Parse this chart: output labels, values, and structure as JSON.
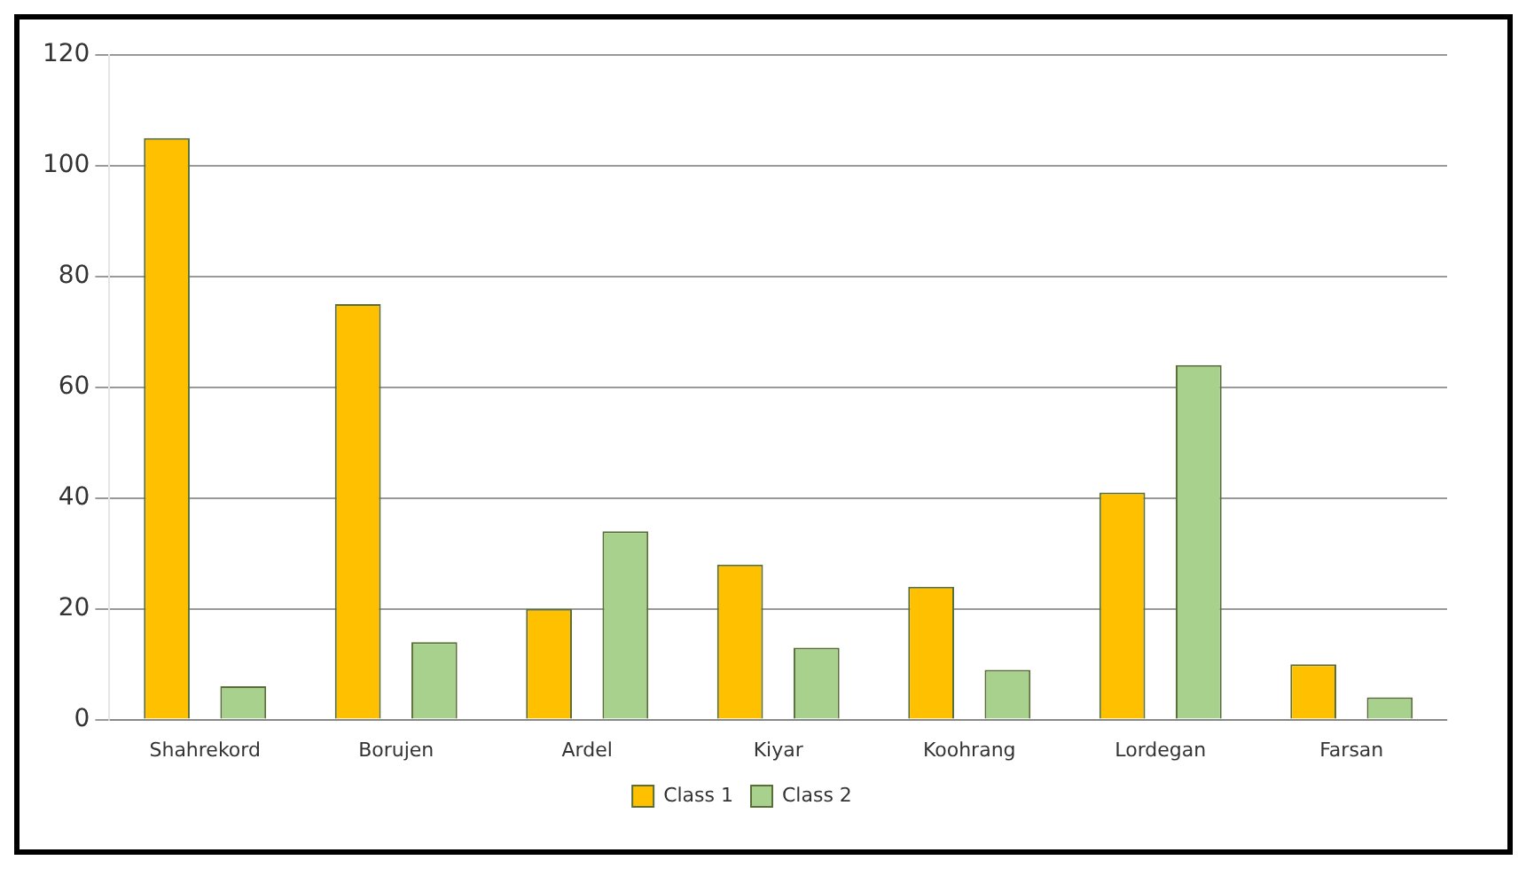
{
  "chart_data": {
    "type": "bar",
    "categories": [
      "Shahrekord",
      "Borujen",
      "Ardel",
      "Kiyar",
      "Koohrang",
      "Lordegan",
      "Farsan"
    ],
    "series": [
      {
        "name": "Class 1",
        "color": "#ffc000",
        "values": [
          105,
          75,
          20,
          28,
          24,
          41,
          10
        ]
      },
      {
        "name": "Class 2",
        "color": "#a9d18e",
        "values": [
          6,
          14,
          34,
          13,
          9,
          64,
          4
        ]
      }
    ],
    "ylim": [
      0,
      120
    ],
    "yticks": [
      0,
      20,
      40,
      60,
      80,
      100,
      120
    ],
    "grid": "y",
    "legend": "bottom"
  }
}
